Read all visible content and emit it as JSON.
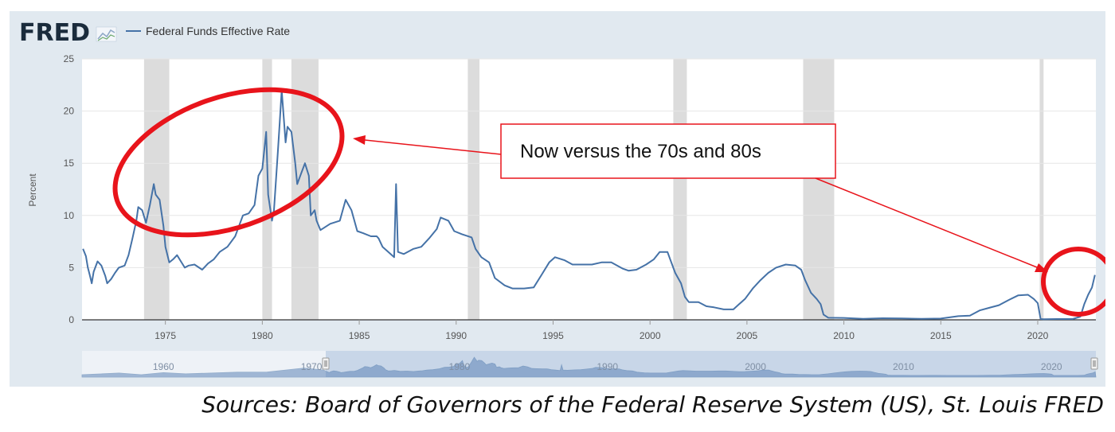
{
  "header": {
    "logo_text": "FRED",
    "legend_label": "Federal Funds Effective Rate"
  },
  "callout": {
    "text": "Now versus the 70s and 80s"
  },
  "footer": {
    "sources": "Sources: Board of Governors of the Federal Reserve System (US), St. Louis FRED"
  },
  "colors": {
    "series": "#4572a7",
    "annotation": "#e8141b",
    "recession": "#dcdcdc",
    "navigator_fill": "#c8d6ea",
    "navigator_selected": "#a9bfdc"
  },
  "chart_data": {
    "type": "line",
    "title": "",
    "xlabel": "",
    "ylabel": "Percent",
    "xlim": [
      1970.7,
      2023.0
    ],
    "ylim": [
      0,
      25
    ],
    "x_ticks": [
      "1975",
      "1980",
      "1985",
      "1990",
      "1995",
      "2000",
      "2005",
      "2010",
      "2015",
      "2020"
    ],
    "y_ticks": [
      "0",
      "5",
      "10",
      "15",
      "20",
      "25"
    ],
    "grid": "horizontal",
    "legend": "top-left",
    "recessions": [
      [
        1973.9,
        1975.2
      ],
      [
        1980.0,
        1980.5
      ],
      [
        1981.5,
        1982.9
      ],
      [
        1990.6,
        1991.2
      ],
      [
        2001.2,
        2001.9
      ],
      [
        2007.9,
        2009.5
      ],
      [
        2020.1,
        2020.3
      ]
    ],
    "series": [
      {
        "name": "Federal Funds Effective Rate",
        "x": [
          1970.75,
          1970.9,
          1971.0,
          1971.1,
          1971.2,
          1971.3,
          1971.5,
          1971.7,
          1971.9,
          1972.0,
          1972.2,
          1972.4,
          1972.6,
          1972.9,
          1973.1,
          1973.3,
          1973.5,
          1973.6,
          1973.8,
          1974.0,
          1974.2,
          1974.4,
          1974.5,
          1974.7,
          1974.9,
          1975.0,
          1975.2,
          1975.4,
          1975.6,
          1975.8,
          1976.0,
          1976.2,
          1976.5,
          1976.9,
          1977.2,
          1977.5,
          1977.8,
          1978.2,
          1978.6,
          1979.0,
          1979.3,
          1979.6,
          1979.8,
          1980.0,
          1980.2,
          1980.3,
          1980.5,
          1980.6,
          1980.8,
          1980.9,
          1981.0,
          1981.2,
          1981.3,
          1981.5,
          1981.7,
          1981.8,
          1982.0,
          1982.2,
          1982.4,
          1982.5,
          1982.7,
          1982.8,
          1983.0,
          1983.5,
          1984.0,
          1984.3,
          1984.6,
          1984.9,
          1985.2,
          1985.6,
          1985.9,
          1986.0,
          1986.2,
          1986.5,
          1986.8,
          1986.9,
          1987.0,
          1987.3,
          1987.8,
          1988.2,
          1988.6,
          1989.0,
          1989.2,
          1989.6,
          1989.9,
          1990.3,
          1990.8,
          1991.0,
          1991.3,
          1991.7,
          1992.0,
          1992.5,
          1992.9,
          1993.5,
          1994.0,
          1994.4,
          1994.8,
          1995.1,
          1995.6,
          1996.0,
          1996.5,
          1997.0,
          1997.5,
          1998.0,
          1998.6,
          1998.9,
          1999.3,
          1999.8,
          2000.2,
          2000.5,
          2000.9,
          2001.0,
          2001.3,
          2001.6,
          2001.8,
          2002.0,
          2002.5,
          2002.9,
          2003.3,
          2003.8,
          2004.3,
          2004.6,
          2004.9,
          2005.3,
          2005.7,
          2006.1,
          2006.5,
          2007.0,
          2007.5,
          2007.8,
          2008.0,
          2008.3,
          2008.6,
          2008.8,
          2008.95,
          2009.2,
          2010.0,
          2011.0,
          2012.0,
          2013.0,
          2014.0,
          2015.0,
          2015.9,
          2016.5,
          2017.0,
          2017.5,
          2018.0,
          2018.5,
          2019.0,
          2019.5,
          2019.8,
          2020.0,
          2020.15,
          2020.3,
          2021.0,
          2021.8,
          2022.2,
          2022.4,
          2022.6,
          2022.8,
          2022.95
        ],
        "values": [
          6.8,
          6.1,
          5.0,
          4.3,
          3.5,
          4.6,
          5.6,
          5.2,
          4.2,
          3.5,
          3.9,
          4.5,
          5.0,
          5.2,
          6.2,
          7.8,
          9.5,
          10.8,
          10.5,
          9.3,
          11.0,
          13.0,
          12.0,
          11.5,
          9.0,
          7.0,
          5.5,
          5.8,
          6.2,
          5.6,
          5.0,
          5.2,
          5.3,
          4.8,
          5.4,
          5.8,
          6.5,
          7.0,
          8.0,
          10.0,
          10.2,
          11.0,
          13.8,
          14.5,
          18.0,
          12.0,
          9.5,
          10.5,
          16.0,
          19.0,
          22.0,
          17.0,
          18.5,
          18.0,
          15.0,
          13.0,
          14.0,
          15.0,
          13.8,
          10.0,
          10.5,
          9.5,
          8.6,
          9.2,
          9.5,
          11.5,
          10.5,
          8.5,
          8.3,
          8.0,
          8.0,
          7.8,
          7.0,
          6.5,
          6.0,
          13.0,
          6.5,
          6.3,
          6.8,
          7.0,
          7.8,
          8.7,
          9.8,
          9.5,
          8.5,
          8.2,
          7.9,
          6.8,
          6.0,
          5.5,
          4.0,
          3.3,
          3.0,
          3.0,
          3.1,
          4.3,
          5.5,
          6.0,
          5.7,
          5.3,
          5.3,
          5.3,
          5.5,
          5.5,
          4.9,
          4.7,
          4.8,
          5.3,
          5.8,
          6.5,
          6.5,
          6.0,
          4.5,
          3.5,
          2.2,
          1.7,
          1.7,
          1.3,
          1.2,
          1.0,
          1.0,
          1.5,
          2.0,
          3.0,
          3.8,
          4.5,
          5.0,
          5.3,
          5.2,
          4.8,
          3.8,
          2.6,
          2.0,
          1.5,
          0.5,
          0.2,
          0.18,
          0.1,
          0.15,
          0.13,
          0.1,
          0.12,
          0.35,
          0.4,
          0.9,
          1.15,
          1.4,
          1.9,
          2.35,
          2.4,
          2.0,
          1.6,
          0.08,
          0.06,
          0.08,
          0.08,
          0.3,
          1.5,
          2.4,
          3.1,
          4.3
        ]
      }
    ]
  },
  "navigator": {
    "labels": [
      "1960",
      "1970",
      "1980",
      "1990",
      "2000",
      "2010",
      "2020"
    ]
  }
}
